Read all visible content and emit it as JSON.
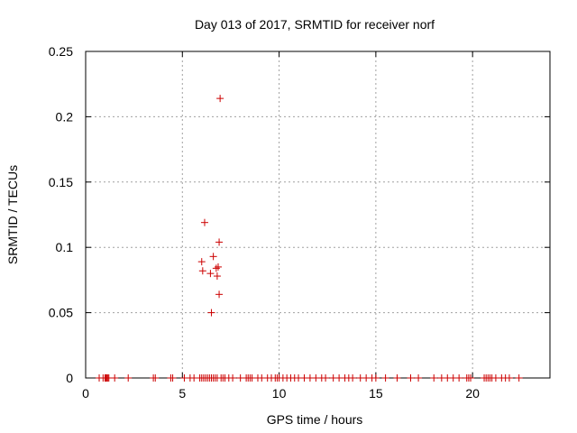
{
  "chart_data": {
    "type": "scatter",
    "title": "Day 013 of 2017, SRMTID for receiver norf",
    "xlabel": "GPS time / hours",
    "ylabel": "SRMTID / TECUs",
    "xlim": [
      0,
      24
    ],
    "ylim": [
      0,
      0.25
    ],
    "x_ticks": [
      0,
      5,
      10,
      15,
      20
    ],
    "y_ticks": [
      0,
      0.05,
      0.1,
      0.15,
      0.2,
      0.25
    ],
    "x_tick_labels": [
      "0",
      "5",
      "10",
      "15",
      "20"
    ],
    "y_tick_labels": [
      "0",
      "0.05",
      "0.1",
      "0.15",
      "0.2",
      "0.25"
    ],
    "grid": true,
    "marker": "plus",
    "color": "#cc0000",
    "series": [
      {
        "points": [
          [
            6.95,
            0.214
          ],
          [
            6.15,
            0.119
          ],
          [
            6.9,
            0.104
          ],
          [
            6.6,
            0.093
          ],
          [
            6.0,
            0.089
          ],
          [
            6.85,
            0.085
          ],
          [
            6.75,
            0.084
          ],
          [
            6.05,
            0.082
          ],
          [
            6.45,
            0.08
          ],
          [
            6.8,
            0.078
          ],
          [
            6.9,
            0.064
          ],
          [
            6.5,
            0.05
          ],
          [
            0.7,
            0
          ],
          [
            0.9,
            0
          ],
          [
            1.0,
            0
          ],
          [
            1.05,
            0
          ],
          [
            1.1,
            0
          ],
          [
            1.15,
            0
          ],
          [
            1.2,
            0
          ],
          [
            1.5,
            0
          ],
          [
            2.2,
            0
          ],
          [
            3.5,
            0
          ],
          [
            3.6,
            0
          ],
          [
            4.4,
            0
          ],
          [
            4.5,
            0
          ],
          [
            5.1,
            0
          ],
          [
            5.4,
            0
          ],
          [
            5.6,
            0
          ],
          [
            5.9,
            0
          ],
          [
            6.0,
            0
          ],
          [
            6.1,
            0
          ],
          [
            6.2,
            0
          ],
          [
            6.3,
            0
          ],
          [
            6.4,
            0
          ],
          [
            6.5,
            0
          ],
          [
            6.6,
            0
          ],
          [
            6.7,
            0
          ],
          [
            6.8,
            0
          ],
          [
            7.0,
            0
          ],
          [
            7.1,
            0
          ],
          [
            7.2,
            0
          ],
          [
            7.4,
            0
          ],
          [
            7.6,
            0
          ],
          [
            8.0,
            0
          ],
          [
            8.3,
            0
          ],
          [
            8.4,
            0
          ],
          [
            8.5,
            0
          ],
          [
            8.6,
            0
          ],
          [
            8.9,
            0
          ],
          [
            9.1,
            0
          ],
          [
            9.4,
            0
          ],
          [
            9.6,
            0
          ],
          [
            9.8,
            0
          ],
          [
            9.9,
            0
          ],
          [
            10.0,
            0
          ],
          [
            10.2,
            0
          ],
          [
            10.4,
            0
          ],
          [
            10.6,
            0
          ],
          [
            10.8,
            0
          ],
          [
            11.0,
            0
          ],
          [
            11.3,
            0
          ],
          [
            11.6,
            0
          ],
          [
            11.9,
            0
          ],
          [
            12.2,
            0
          ],
          [
            12.4,
            0
          ],
          [
            12.8,
            0
          ],
          [
            13.1,
            0
          ],
          [
            13.4,
            0
          ],
          [
            13.6,
            0
          ],
          [
            13.8,
            0
          ],
          [
            14.2,
            0
          ],
          [
            14.5,
            0
          ],
          [
            14.8,
            0
          ],
          [
            15.0,
            0
          ],
          [
            15.5,
            0
          ],
          [
            16.1,
            0
          ],
          [
            16.8,
            0
          ],
          [
            17.2,
            0
          ],
          [
            18.0,
            0
          ],
          [
            18.4,
            0
          ],
          [
            18.7,
            0
          ],
          [
            19.0,
            0
          ],
          [
            19.3,
            0
          ],
          [
            19.7,
            0
          ],
          [
            19.8,
            0
          ],
          [
            19.9,
            0
          ],
          [
            20.6,
            0
          ],
          [
            20.7,
            0
          ],
          [
            20.8,
            0
          ],
          [
            20.9,
            0
          ],
          [
            21.0,
            0
          ],
          [
            21.2,
            0
          ],
          [
            21.5,
            0
          ],
          [
            21.7,
            0
          ],
          [
            21.9,
            0
          ],
          [
            22.4,
            0
          ]
        ]
      }
    ]
  }
}
